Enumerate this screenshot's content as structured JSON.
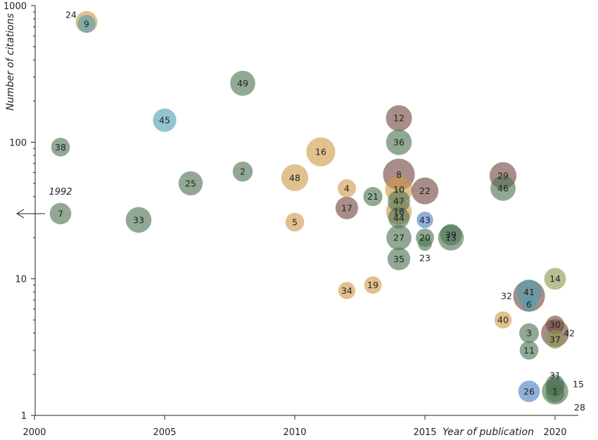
{
  "chart_data": {
    "type": "scatter",
    "variant": "bubble",
    "xlabel": "Year of publication",
    "ylabel": "Number of citations",
    "xlim": [
      2000,
      2021
    ],
    "ylim": [
      1,
      1000
    ],
    "yscale": "log",
    "x_ticks": [
      2000,
      2005,
      2010,
      2015,
      2020
    ],
    "y_ticks": [
      1,
      10,
      100,
      1000
    ],
    "x_tick_labels": [
      "2000",
      "2005",
      "2010",
      "2015",
      "2020"
    ],
    "y_tick_labels": [
      "1",
      "10",
      "100",
      "1000"
    ],
    "grid": false,
    "colors": {
      "green": "#4e7452",
      "tan": "#cf9b48",
      "mauve": "#73473f",
      "teal": "#4c9fb0",
      "blue": "#4c80c2",
      "olive": "#8c9a4e"
    },
    "annotation": {
      "label": "1992",
      "x": 2001,
      "y": 30,
      "note": "arrow pointing left"
    },
    "points": [
      {
        "id": "24",
        "x": 2002,
        "y": 760,
        "size": 3.2,
        "color": "tan",
        "label_dx": -22,
        "label_dy": -10
      },
      {
        "id": "9",
        "x": 2002,
        "y": 735,
        "size": 1.3,
        "color": "teal"
      },
      {
        "id": "49",
        "x": 2008,
        "y": 270,
        "size": 5.5,
        "color": "green"
      },
      {
        "id": "45",
        "x": 2005,
        "y": 145,
        "size": 4.2,
        "color": "teal"
      },
      {
        "id": "38",
        "x": 2001,
        "y": 92,
        "size": 1.6,
        "color": "green"
      },
      {
        "id": "16",
        "x": 2011,
        "y": 85,
        "size": 9,
        "color": "tan"
      },
      {
        "id": "2",
        "x": 2008,
        "y": 61,
        "size": 2.2,
        "color": "green"
      },
      {
        "id": "25",
        "x": 2006,
        "y": 50,
        "size": 4.8,
        "color": "green"
      },
      {
        "id": "48",
        "x": 2010,
        "y": 55,
        "size": 7,
        "color": "tan"
      },
      {
        "id": "7",
        "x": 2001,
        "y": 30,
        "size": 3,
        "color": "green"
      },
      {
        "id": "33",
        "x": 2004,
        "y": 27,
        "size": 6,
        "color": "green"
      },
      {
        "id": "5",
        "x": 2010,
        "y": 26,
        "size": 1.6,
        "color": "tan"
      },
      {
        "id": "4",
        "x": 2012,
        "y": 46,
        "size": 1.4,
        "color": "tan"
      },
      {
        "id": "17",
        "x": 2012,
        "y": 33,
        "size": 3.7,
        "color": "mauve"
      },
      {
        "id": "21",
        "x": 2013,
        "y": 40,
        "size": 1.8,
        "color": "green"
      },
      {
        "id": "12",
        "x": 2014,
        "y": 150,
        "size": 6.3,
        "color": "mauve"
      },
      {
        "id": "36",
        "x": 2014,
        "y": 100,
        "size": 6,
        "color": "green"
      },
      {
        "id": "8",
        "x": 2014,
        "y": 58,
        "size": 12,
        "color": "mauve"
      },
      {
        "id": "10",
        "x": 2014,
        "y": 45,
        "size": 7.5,
        "color": "tan"
      },
      {
        "id": "22",
        "x": 2015,
        "y": 44,
        "size": 7,
        "color": "mauve"
      },
      {
        "id": "47",
        "x": 2014,
        "y": 37,
        "size": 3.5,
        "color": "green"
      },
      {
        "id": "18",
        "x": 2014,
        "y": 31,
        "size": 6,
        "color": "tan"
      },
      {
        "id": "44",
        "x": 2014,
        "y": 28,
        "size": 3,
        "color": "green"
      },
      {
        "id": "43",
        "x": 2015,
        "y": 27,
        "size": 0.8,
        "color": "blue"
      },
      {
        "id": "27",
        "x": 2014,
        "y": 20,
        "size": 5.5,
        "color": "green"
      },
      {
        "id": "20",
        "x": 2015,
        "y": 20,
        "size": 1.4,
        "color": "green"
      },
      {
        "id": "23",
        "x": 2015,
        "y": 18,
        "size": 0.2,
        "color": "green",
        "label_dx": 0,
        "label_dy": 20
      },
      {
        "id": "39",
        "x": 2016,
        "y": 21,
        "size": 3,
        "color": "green"
      },
      {
        "id": "13",
        "x": 2016,
        "y": 20,
        "size": 6,
        "color": "green"
      },
      {
        "id": "35",
        "x": 2014,
        "y": 14,
        "size": 3.8,
        "color": "green"
      },
      {
        "id": "29",
        "x": 2018,
        "y": 57,
        "size": 7,
        "color": "mauve"
      },
      {
        "id": "46",
        "x": 2018,
        "y": 46,
        "size": 5.5,
        "color": "green"
      },
      {
        "id": "34",
        "x": 2012,
        "y": 8.2,
        "size": 1,
        "color": "tan"
      },
      {
        "id": "19",
        "x": 2013,
        "y": 9,
        "size": 1.1,
        "color": "tan"
      },
      {
        "id": "14",
        "x": 2020,
        "y": 10,
        "size": 3.2,
        "color": "olive"
      },
      {
        "id": "32",
        "x": 2019,
        "y": 7.5,
        "size": 12,
        "color": "mauve",
        "label_dx": -32,
        "label_dy": 0
      },
      {
        "id": "41",
        "x": 2019,
        "y": 8,
        "size": 5.5,
        "color": "teal"
      },
      {
        "id": "6",
        "x": 2019,
        "y": 6.5,
        "size": 0.3,
        "color": "teal"
      },
      {
        "id": "40",
        "x": 2018,
        "y": 5,
        "size": 1,
        "color": "tan"
      },
      {
        "id": "3",
        "x": 2019,
        "y": 4,
        "size": 2,
        "color": "green"
      },
      {
        "id": "30",
        "x": 2020,
        "y": 4.6,
        "size": 1.5,
        "color": "mauve"
      },
      {
        "id": "42",
        "x": 2020,
        "y": 4,
        "size": 8,
        "color": "mauve",
        "label_dx": 20,
        "label_dy": 0
      },
      {
        "id": "37",
        "x": 2020,
        "y": 3.6,
        "size": 1.5,
        "color": "olive"
      },
      {
        "id": "11",
        "x": 2019,
        "y": 3,
        "size": 1.6,
        "color": "green"
      },
      {
        "id": "31",
        "x": 2020,
        "y": 1.7,
        "size": 1.5,
        "color": "green",
        "label_dx": 0,
        "label_dy": -12
      },
      {
        "id": "15",
        "x": 2020,
        "y": 1.6,
        "size": 1.5,
        "color": "green",
        "label_dx": 33,
        "label_dy": -5
      },
      {
        "id": "1",
        "x": 2020,
        "y": 1.5,
        "size": 6.5,
        "color": "green"
      },
      {
        "id": "28",
        "x": 2020,
        "y": 1.45,
        "size": 1.5,
        "color": "green",
        "label_dx": 35,
        "label_dy": 20
      },
      {
        "id": "26",
        "x": 2019,
        "y": 1.5,
        "size": 3,
        "color": "blue"
      }
    ]
  }
}
